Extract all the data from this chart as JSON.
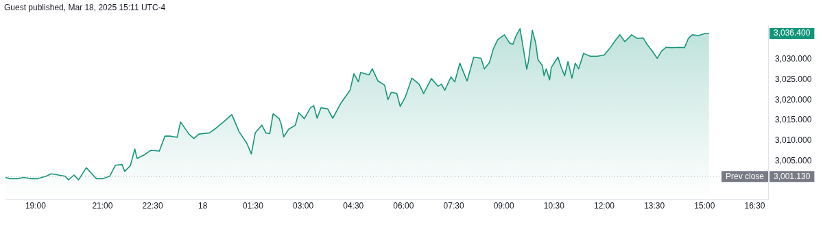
{
  "chart_data": {
    "type": "area",
    "title": "Guest published, Mar 18, 2025 15:11 UTC-4",
    "x": [
      "2025-03-17T18:06",
      "2025-03-17T18:14",
      "2025-03-17T18:27",
      "2025-03-17T18:39",
      "2025-03-17T18:52",
      "2025-03-17T19:04",
      "2025-03-17T19:19",
      "2025-03-17T19:28",
      "2025-03-17T19:41",
      "2025-03-17T19:53",
      "2025-03-17T19:59",
      "2025-03-17T20:09",
      "2025-03-17T20:17",
      "2025-03-17T20:31",
      "2025-03-17T20:49",
      "2025-03-17T21:01",
      "2025-03-17T21:13",
      "2025-03-17T21:23",
      "2025-03-17T21:35",
      "2025-03-17T21:40",
      "2025-03-17T21:50",
      "2025-03-17T21:58",
      "2025-03-17T22:02",
      "2025-03-17T22:14",
      "2025-03-17T22:27",
      "2025-03-17T22:42",
      "2025-03-17T22:52",
      "2025-03-17T23:01",
      "2025-03-17T23:14",
      "2025-03-17T23:20",
      "2025-03-17T23:35",
      "2025-03-17T23:44",
      "2025-03-17T23:53",
      "2025-03-18T00:12",
      "2025-03-18T00:24",
      "2025-03-18T00:37",
      "2025-03-18T00:52",
      "2025-03-18T01:05",
      "2025-03-18T01:19",
      "2025-03-18T01:27",
      "2025-03-18T01:34",
      "2025-03-18T01:46",
      "2025-03-18T01:53",
      "2025-03-18T02:00",
      "2025-03-18T02:06",
      "2025-03-18T02:17",
      "2025-03-18T02:21",
      "2025-03-18T02:25",
      "2025-03-18T02:34",
      "2025-03-18T02:46",
      "2025-03-18T02:52",
      "2025-03-18T03:02",
      "2025-03-18T03:13",
      "2025-03-18T03:19",
      "2025-03-18T03:25",
      "2025-03-18T03:32",
      "2025-03-18T03:44",
      "2025-03-18T03:53",
      "2025-03-18T04:08",
      "2025-03-18T04:24",
      "2025-03-18T04:31",
      "2025-03-18T04:39",
      "2025-03-18T04:43",
      "2025-03-18T04:58",
      "2025-03-18T05:04",
      "2025-03-18T05:14",
      "2025-03-18T05:26",
      "2025-03-18T05:32",
      "2025-03-18T05:38",
      "2025-03-18T05:48",
      "2025-03-18T05:54",
      "2025-03-18T06:03",
      "2025-03-18T06:15",
      "2025-03-18T06:28",
      "2025-03-18T06:36",
      "2025-03-18T06:50",
      "2025-03-18T07:02",
      "2025-03-18T07:08",
      "2025-03-18T07:14",
      "2025-03-18T07:25",
      "2025-03-18T07:32",
      "2025-03-18T07:41",
      "2025-03-18T07:54",
      "2025-03-18T08:06",
      "2025-03-18T08:19",
      "2025-03-18T08:25",
      "2025-03-18T08:34",
      "2025-03-18T08:41",
      "2025-03-18T08:49",
      "2025-03-18T09:01",
      "2025-03-18T09:10",
      "2025-03-18T09:16",
      "2025-03-18T09:22",
      "2025-03-18T09:29",
      "2025-03-18T09:35",
      "2025-03-18T09:41",
      "2025-03-18T09:44",
      "2025-03-18T09:51",
      "2025-03-18T09:57",
      "2025-03-18T10:01",
      "2025-03-18T10:09",
      "2025-03-18T10:12",
      "2025-03-18T10:16",
      "2025-03-18T10:22",
      "2025-03-18T10:25",
      "2025-03-18T10:37",
      "2025-03-18T10:43",
      "2025-03-18T10:49",
      "2025-03-18T10:55",
      "2025-03-18T11:02",
      "2025-03-18T11:08",
      "2025-03-18T11:14",
      "2025-03-18T11:23",
      "2025-03-18T11:35",
      "2025-03-18T11:48",
      "2025-03-18T12:00",
      "2025-03-18T12:09",
      "2025-03-18T12:21",
      "2025-03-18T12:28",
      "2025-03-18T12:37",
      "2025-03-18T12:43",
      "2025-03-18T12:49",
      "2025-03-18T12:59",
      "2025-03-18T13:10",
      "2025-03-18T13:17",
      "2025-03-18T13:26",
      "2025-03-18T13:35",
      "2025-03-18T13:43",
      "2025-03-18T13:51",
      "2025-03-18T14:01",
      "2025-03-18T14:16",
      "2025-03-18T14:24",
      "2025-03-18T14:31",
      "2025-03-18T14:38",
      "2025-03-18T14:49",
      "2025-03-18T15:01",
      "2025-03-18T15:08"
    ],
    "series": [
      {
        "color": "#13957b",
        "values": [
          3000.9,
          3000.6,
          3000.6,
          3000.9,
          3000.6,
          3000.6,
          3001.2,
          3001.8,
          3001.5,
          3001.2,
          3000.3,
          3001.5,
          3000.3,
          3003.3,
          3000.6,
          3000.6,
          3001.2,
          3003.9,
          3004.1,
          3002.4,
          3003.8,
          3007.9,
          3005.6,
          3006.4,
          3007.6,
          3007.4,
          3011.1,
          3011.1,
          3010.8,
          3014.6,
          3011.6,
          3010.5,
          3011.6,
          3011.9,
          3013.1,
          3014.6,
          3016.4,
          3012.2,
          3009.3,
          3006.7,
          3011.9,
          3013.8,
          3011.9,
          3011.7,
          3016.6,
          3015.4,
          3013.8,
          3010.9,
          3012.8,
          3013.8,
          3016.9,
          3015.4,
          3018.1,
          3018.6,
          3015.5,
          3018.1,
          3017.8,
          3015.5,
          3019.3,
          3022.4,
          3026.5,
          3024.5,
          3026.8,
          3026.2,
          3027.7,
          3024.7,
          3023.7,
          3020.1,
          3021.9,
          3021.6,
          3018.4,
          3020.7,
          3025.4,
          3023.9,
          3021.6,
          3025.3,
          3023.4,
          3023.9,
          3022.4,
          3025.7,
          3024.5,
          3029.1,
          3024.7,
          3030.6,
          3030.3,
          3027.7,
          3029.2,
          3032.6,
          3034.9,
          3036.1,
          3034.1,
          3033.7,
          3035.9,
          3037.6,
          3032.6,
          3027.6,
          3029.5,
          3037.2,
          3034.1,
          3030.0,
          3028.5,
          3026.0,
          3027.7,
          3025.0,
          3028.0,
          3030.6,
          3028.0,
          3026.0,
          3029.5,
          3025.4,
          3029.1,
          3027.7,
          3031.5,
          3030.8,
          3030.8,
          3031.1,
          3032.6,
          3034.9,
          3036.1,
          3034.4,
          3035.2,
          3036.1,
          3035.2,
          3035.3,
          3033.7,
          3032.1,
          3030.3,
          3032.1,
          3033.0,
          3032.9,
          3033.0,
          3032.9,
          3035.2,
          3036.1,
          3035.9,
          3036.4,
          3036.4
        ]
      }
    ],
    "xlim": [
      "2025-03-17T18:06",
      "2025-03-18T16:54"
    ],
    "xticks": [
      {
        "value": "2025-03-17T19:00",
        "label": "19:00"
      },
      {
        "value": "2025-03-17T21:00",
        "label": "21:00"
      },
      {
        "value": "2025-03-17T22:30",
        "label": "22:30"
      },
      {
        "value": "2025-03-18T00:00",
        "label": "18"
      },
      {
        "value": "2025-03-18T01:30",
        "label": "01:30"
      },
      {
        "value": "2025-03-18T03:00",
        "label": "03:00"
      },
      {
        "value": "2025-03-18T04:30",
        "label": "04:30"
      },
      {
        "value": "2025-03-18T06:00",
        "label": "06:00"
      },
      {
        "value": "2025-03-18T07:30",
        "label": "07:30"
      },
      {
        "value": "2025-03-18T09:00",
        "label": "09:00"
      },
      {
        "value": "2025-03-18T10:30",
        "label": "10:30"
      },
      {
        "value": "2025-03-18T12:00",
        "label": "12:00"
      },
      {
        "value": "2025-03-18T13:30",
        "label": "13:30"
      },
      {
        "value": "2025-03-18T15:00",
        "label": "15:00"
      },
      {
        "value": "2025-03-18T16:30",
        "label": "16:30"
      }
    ],
    "ylim": [
      2995.5,
      3038.4
    ],
    "yticks": [
      {
        "value": 3005,
        "label": "3,005.000"
      },
      {
        "value": 3010,
        "label": "3,010.000"
      },
      {
        "value": 3015,
        "label": "3,015.000"
      },
      {
        "value": 3020,
        "label": "3,020.000"
      },
      {
        "value": 3025,
        "label": "3,025.000"
      },
      {
        "value": 3030,
        "label": "3,030.000"
      }
    ],
    "ref_lines": [
      {
        "axis": "y",
        "value": 3001.13,
        "label": "Prev close",
        "color": "#b2b5be",
        "line_style": "dotted"
      }
    ],
    "annotations": [
      "3,036.400",
      "3,001.130"
    ],
    "marker": "none",
    "line_style": "solid",
    "legend": false,
    "grid": false
  }
}
